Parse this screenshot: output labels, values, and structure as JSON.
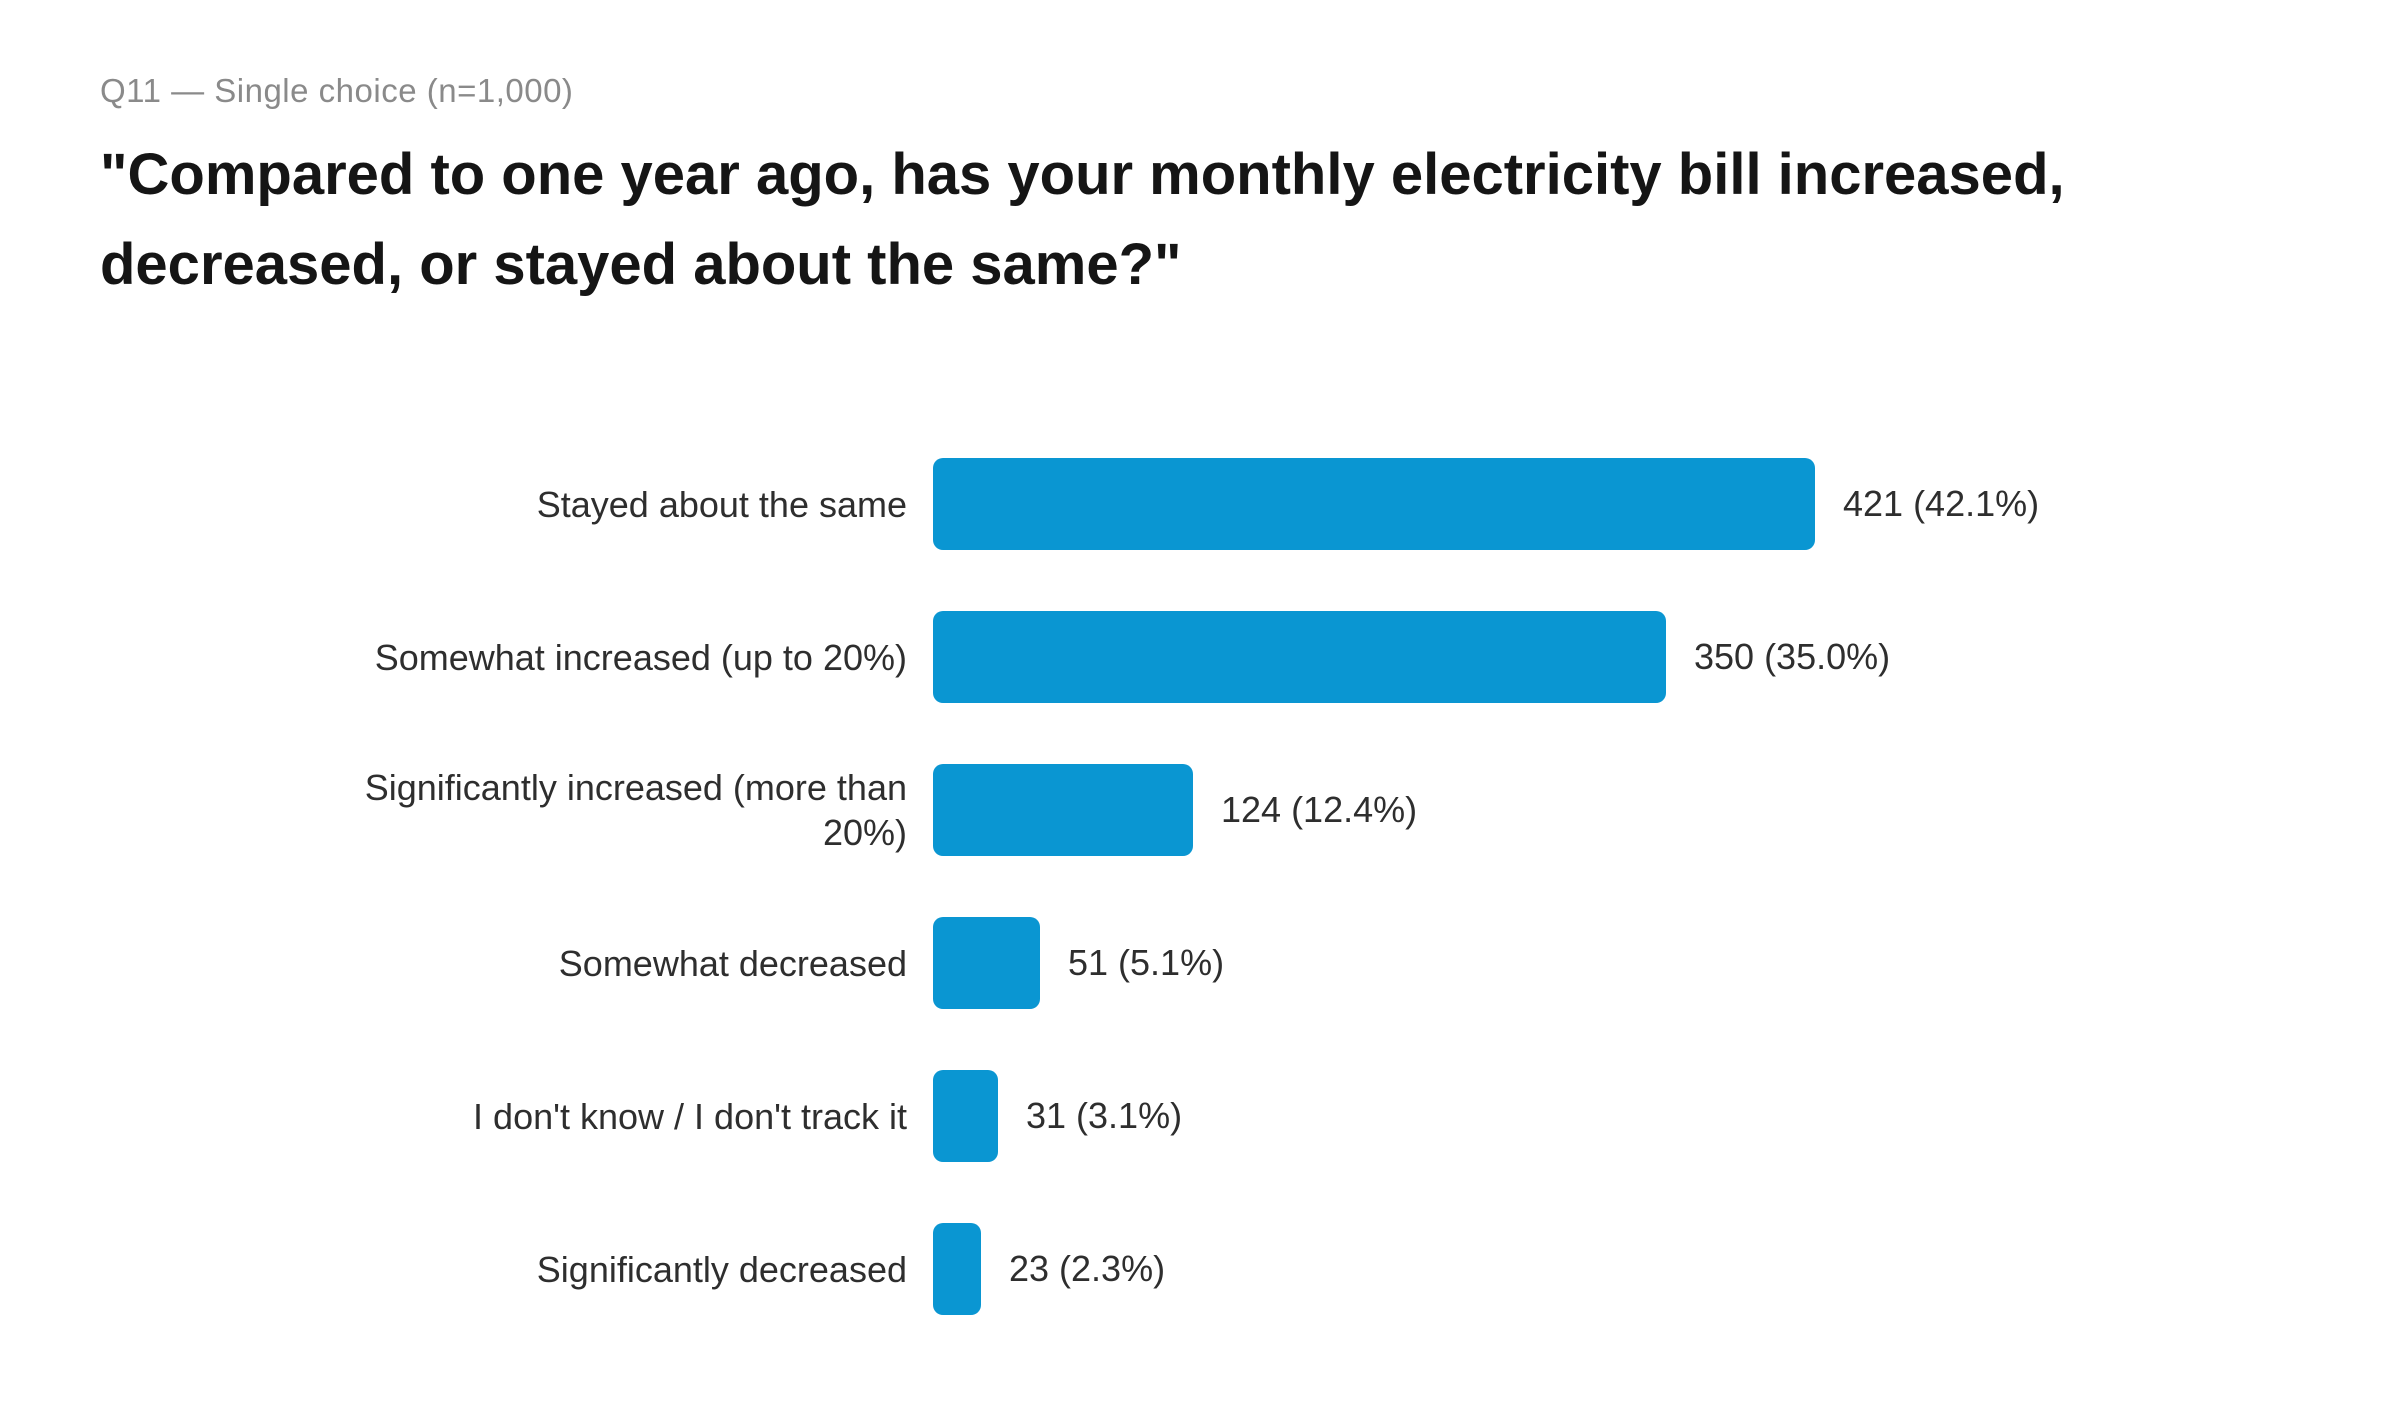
{
  "header": {
    "subtitle": "Q11 — Single choice (n=1,000)",
    "title": "\"Compared to one year ago, has your monthly electricity bill increased, decreased, or stayed about the same?\""
  },
  "colors": {
    "bar": "#0a96d2",
    "subtitle_text": "#8a8a8a",
    "title_text": "#151515",
    "label_text": "#2e2e2e"
  },
  "chart_data": {
    "type": "bar",
    "orientation": "horizontal",
    "title": "\"Compared to one year ago, has your monthly electricity bill increased, decreased, or stayed about the same?\"",
    "subtitle": "Q11 — Single choice (n=1,000)",
    "n_total": 1000,
    "categories": [
      "Stayed about the same",
      "Somewhat increased (up to 20%)",
      "Significantly increased (more than 20%)",
      "Somewhat decreased",
      "I don't know / I don't track it",
      "Significantly decreased"
    ],
    "values": [
      421,
      350,
      124,
      51,
      31,
      23
    ],
    "percentages": [
      42.1,
      35.0,
      12.4,
      5.1,
      3.1,
      2.3
    ],
    "value_labels": [
      "421 (42.1%)",
      "350 (35.0%)",
      "124 (12.4%)",
      "51 (5.1%)",
      "31 (3.1%)",
      "23 (2.3%)"
    ],
    "xlabel": "",
    "ylabel": "",
    "xlim": [
      0,
      421
    ],
    "grid": false,
    "axes_visible": false,
    "legend": "none",
    "bar_color": "#0a96d2"
  }
}
